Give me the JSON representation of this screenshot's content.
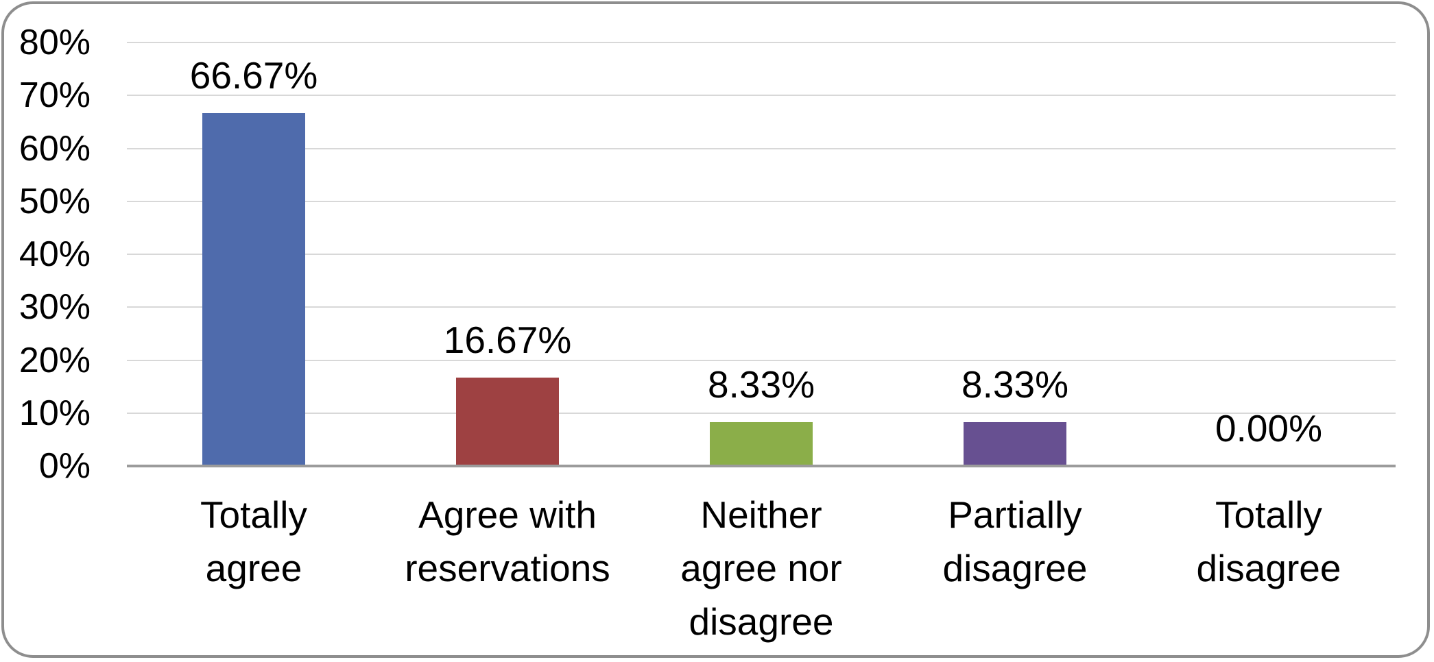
{
  "chart_data": {
    "type": "bar",
    "title": "",
    "xlabel": "",
    "ylabel": "",
    "categories": [
      "Totally agree",
      "Agree with reservations",
      "Neither agree nor disagree",
      "Partially disagree",
      "Totally disagree"
    ],
    "values": [
      66.67,
      16.67,
      8.33,
      8.33,
      0.0
    ],
    "data_labels": [
      "66.67%",
      "16.67%",
      "8.33%",
      "8.33%",
      "0.00%"
    ],
    "bar_colors": [
      "#4f6bac",
      "#9e4142",
      "#8bae49",
      "#675091",
      ""
    ],
    "y_ticks": [
      "0%",
      "10%",
      "20%",
      "30%",
      "40%",
      "50%",
      "60%",
      "70%",
      "80%"
    ],
    "ylim": [
      0,
      80
    ],
    "grid": "horizontal-only",
    "legend": "none"
  },
  "colors": {
    "gridline": "#d8d8d8",
    "axis_line": "#9b9b9b",
    "frame_border": "#8e8e8e",
    "background": "#ffffff",
    "text": "#000000"
  }
}
